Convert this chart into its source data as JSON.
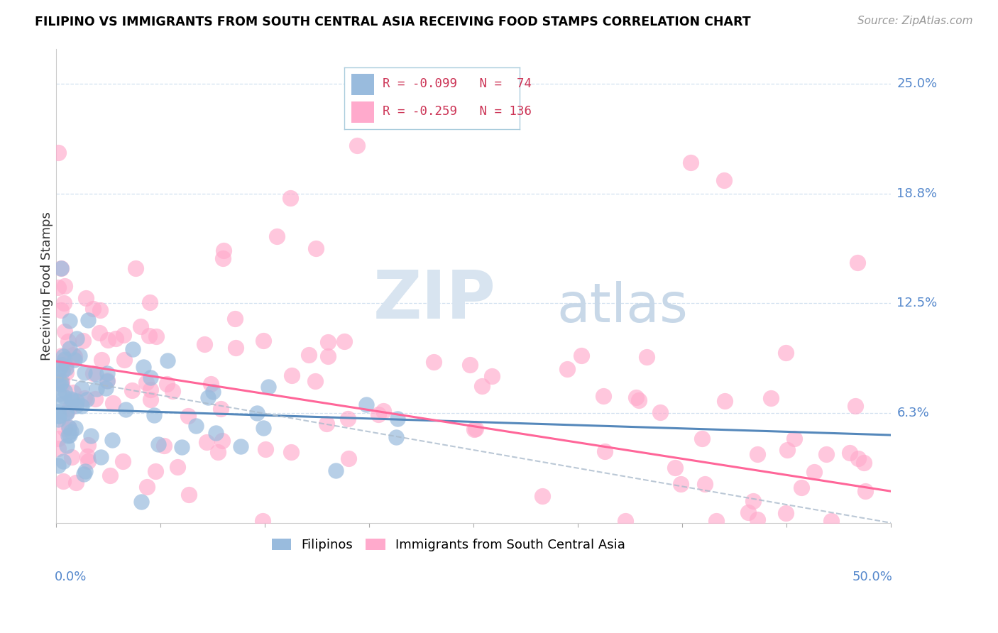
{
  "title": "FILIPINO VS IMMIGRANTS FROM SOUTH CENTRAL ASIA RECEIVING FOOD STAMPS CORRELATION CHART",
  "source": "Source: ZipAtlas.com",
  "ylabel": "Receiving Food Stamps",
  "xmin": 0.0,
  "xmax": 0.5,
  "ymin": 0.0,
  "ymax": 0.27,
  "color_filipino": "#99BBDD",
  "color_asia": "#FFAACC",
  "color_line_filipino": "#5588BB",
  "color_line_asia": "#FF6699",
  "color_dashed": "#AABBCC",
  "fil_line_x0": 0.0,
  "fil_line_y0": 0.065,
  "fil_line_x1": 0.5,
  "fil_line_y1": 0.05,
  "asia_line_x0": 0.0,
  "asia_line_y0": 0.092,
  "asia_line_x1": 0.5,
  "asia_line_y1": 0.018,
  "dash_line_x0": 0.0,
  "dash_line_y0": 0.083,
  "dash_line_x1": 0.5,
  "dash_line_y1": 0.0,
  "ytick_positions": [
    0.0625,
    0.125,
    0.1875,
    0.25
  ],
  "ytick_labels": [
    "6.3%",
    "12.5%",
    "18.8%",
    "25.0%"
  ]
}
